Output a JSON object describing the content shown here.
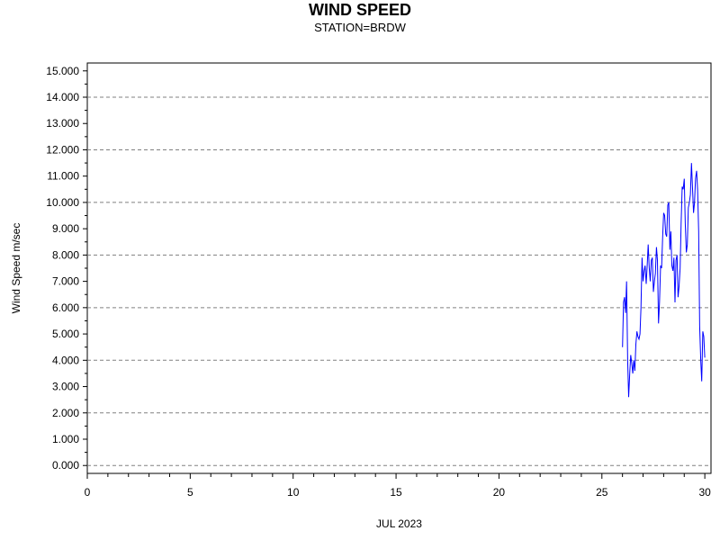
{
  "chart_data": {
    "type": "line",
    "title": "WIND SPEED",
    "subtitle": "STATION=BRDW",
    "xlabel": "JUL 2023",
    "ylabel": "Wind Speed m/sec",
    "xlim": [
      0,
      30.3
    ],
    "ylim": [
      -0.3,
      15.3
    ],
    "x_ticks": [
      "0",
      "5",
      "10",
      "15",
      "20",
      "25",
      "30"
    ],
    "y_ticks": [
      "0.000",
      "1.000",
      "2.000",
      "3.000",
      "4.000",
      "5.000",
      "6.000",
      "7.000",
      "8.000",
      "9.000",
      "10.000",
      "11.000",
      "12.000",
      "13.000",
      "14.000",
      "15.000"
    ],
    "grid": "horizontal-dashed-even",
    "line_color": "#0000ff",
    "series": [
      {
        "x": [
          26.0,
          26.05,
          26.1,
          26.15,
          26.2,
          26.25,
          26.3,
          26.35,
          26.4,
          26.45,
          26.5,
          26.55,
          26.6,
          26.65,
          26.7,
          26.75,
          26.8,
          26.85,
          26.9,
          26.95,
          27.0,
          27.05,
          27.1,
          27.15,
          27.2,
          27.25,
          27.3,
          27.35,
          27.4,
          27.45,
          27.5,
          27.55,
          27.6,
          27.65,
          27.7,
          27.75,
          27.8,
          27.85,
          27.9,
          27.95,
          28.0,
          28.05,
          28.1,
          28.15,
          28.2,
          28.25,
          28.3,
          28.35,
          28.4,
          28.45,
          28.5,
          28.55,
          28.6,
          28.65,
          28.7,
          28.75,
          28.8,
          28.85,
          28.9,
          28.95,
          29.0,
          29.05,
          29.1,
          29.15,
          29.2,
          29.25,
          29.3,
          29.35,
          29.4,
          29.45,
          29.5,
          29.55,
          29.6,
          29.65,
          29.7,
          29.75,
          29.8,
          29.85,
          29.9,
          29.95,
          30.0
        ],
        "values": [
          4.5,
          6.2,
          6.4,
          5.8,
          7.0,
          4.0,
          2.6,
          3.5,
          4.2,
          3.9,
          3.5,
          4.0,
          3.6,
          4.6,
          5.1,
          4.9,
          4.8,
          5.0,
          6.0,
          7.9,
          7.0,
          7.4,
          7.6,
          6.9,
          7.6,
          8.4,
          7.5,
          7.0,
          7.8,
          7.9,
          6.6,
          7.0,
          7.3,
          8.3,
          7.8,
          5.4,
          6.2,
          7.6,
          7.5,
          8.7,
          9.6,
          9.5,
          8.8,
          8.7,
          9.9,
          10.0,
          8.2,
          8.9,
          7.6,
          7.4,
          7.9,
          6.2,
          7.8,
          8.0,
          6.4,
          6.8,
          7.5,
          9.2,
          10.6,
          10.5,
          10.9,
          9.2,
          8.1,
          8.4,
          9.8,
          10.0,
          10.3,
          11.5,
          10.6,
          9.6,
          10.0,
          10.9,
          11.2,
          10.5,
          8.9,
          5.3,
          4.0,
          3.2,
          5.1,
          4.9,
          4.1
        ]
      }
    ]
  }
}
